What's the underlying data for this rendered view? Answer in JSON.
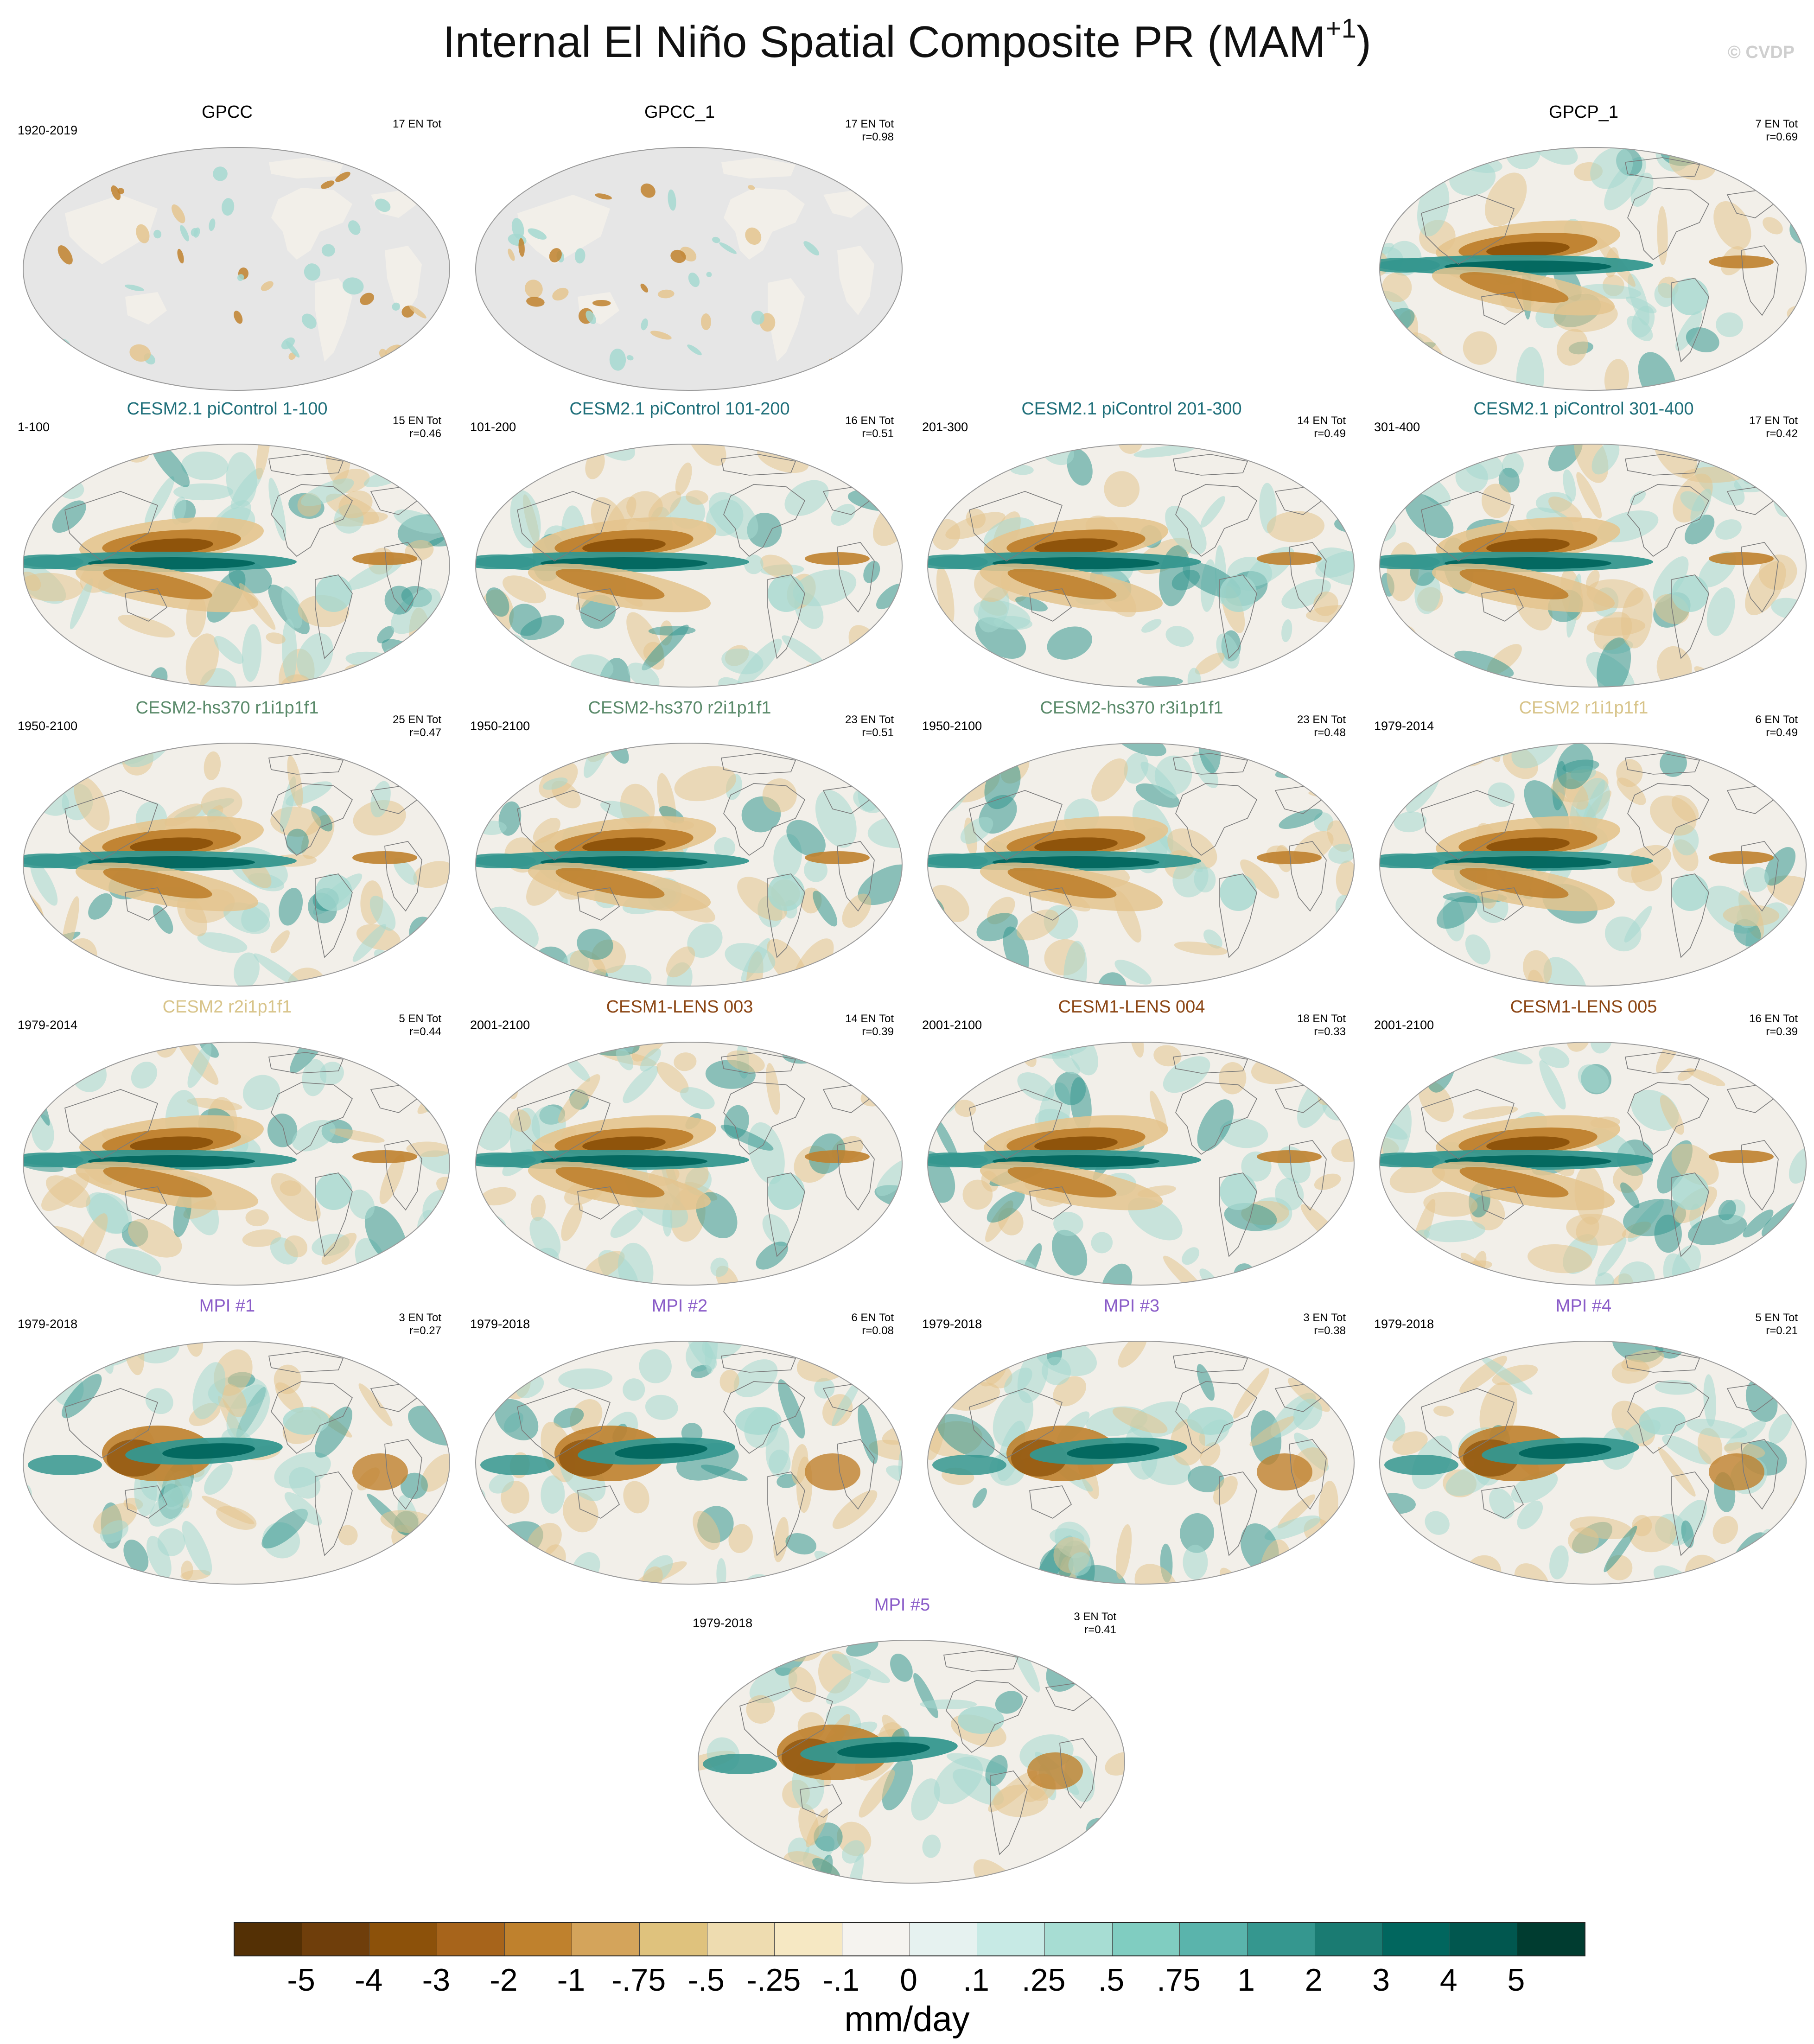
{
  "title_main": "Internal El Niño Spatial Composite PR (MAM",
  "title_sup": "+1",
  "title_end": ")",
  "copyright": "© CVDP",
  "colors": {
    "land_gray": "#e6e6e6",
    "ocean_base": "#f2efe9",
    "dry_dark": "#8c510a",
    "dry_mid": "#bf812d",
    "dry_light": "#e4c48e",
    "wet_dark": "#01665e",
    "wet_mid": "#35978f",
    "wet_light": "#a5d8d0",
    "title_cesm21": "#1f6f7a",
    "title_hs370": "#5a8a6a",
    "title_cesm2": "#d8c48a",
    "title_lens": "#8b4513",
    "title_mpi": "#8a5cc8",
    "title_obs": "#000000"
  },
  "panels": [
    {
      "id": "gpcc",
      "title": "GPCC",
      "years": "1920-2019",
      "en": "17 EN Tot",
      "r": "",
      "pattern": "land"
    },
    {
      "id": "gpcc1",
      "title": "GPCC_1",
      "years": "",
      "en": "17 EN Tot",
      "r": "r=0.98",
      "pattern": "land"
    },
    {
      "id": "gpcp1",
      "title": "GPCP_1",
      "years": "",
      "en": "7 EN Tot",
      "r": "r=0.69",
      "pattern": "obs"
    },
    {
      "id": "pic1",
      "title": "CESM2.1 piControl 1-100",
      "years": "1-100",
      "en": "15 EN Tot",
      "r": "r=0.46",
      "pattern": "model"
    },
    {
      "id": "pic2",
      "title": "CESM2.1 piControl 101-200",
      "years": "101-200",
      "en": "16 EN Tot",
      "r": "r=0.51",
      "pattern": "model"
    },
    {
      "id": "pic3",
      "title": "CESM2.1 piControl 201-300",
      "years": "201-300",
      "en": "14 EN Tot",
      "r": "r=0.49",
      "pattern": "model"
    },
    {
      "id": "pic4",
      "title": "CESM2.1 piControl 301-400",
      "years": "301-400",
      "en": "17 EN Tot",
      "r": "r=0.42",
      "pattern": "model"
    },
    {
      "id": "hs1",
      "title": "CESM2-hs370 r1i1p1f1",
      "years": "1950-2100",
      "en": "25 EN Tot",
      "r": "r=0.47",
      "pattern": "model"
    },
    {
      "id": "hs2",
      "title": "CESM2-hs370 r2i1p1f1",
      "years": "1950-2100",
      "en": "23 EN Tot",
      "r": "r=0.51",
      "pattern": "model"
    },
    {
      "id": "hs3",
      "title": "CESM2-hs370 r3i1p1f1",
      "years": "1950-2100",
      "en": "23 EN Tot",
      "r": "r=0.48",
      "pattern": "model"
    },
    {
      "id": "c2r1",
      "title": "CESM2 r1i1p1f1",
      "years": "1979-2014",
      "en": "6 EN Tot",
      "r": "r=0.49",
      "pattern": "model"
    },
    {
      "id": "c2r2",
      "title": "CESM2 r2i1p1f1",
      "years": "1979-2014",
      "en": "5 EN Tot",
      "r": "r=0.44",
      "pattern": "model"
    },
    {
      "id": "l003",
      "title": "CESM1-LENS 003",
      "years": "2001-2100",
      "en": "14 EN Tot",
      "r": "r=0.39",
      "pattern": "model"
    },
    {
      "id": "l004",
      "title": "CESM1-LENS 004",
      "years": "2001-2100",
      "en": "18 EN Tot",
      "r": "r=0.33",
      "pattern": "model"
    },
    {
      "id": "l005",
      "title": "CESM1-LENS 005",
      "years": "2001-2100",
      "en": "16 EN Tot",
      "r": "r=0.39",
      "pattern": "model"
    },
    {
      "id": "mpi1",
      "title": "MPI #1",
      "years": "1979-2018",
      "en": "3 EN Tot",
      "r": "r=0.27",
      "pattern": "mpi"
    },
    {
      "id": "mpi2",
      "title": "MPI #2",
      "years": "1979-2018",
      "en": "6 EN Tot",
      "r": "r=0.08",
      "pattern": "mpi"
    },
    {
      "id": "mpi3",
      "title": "MPI #3",
      "years": "1979-2018",
      "en": "3 EN Tot",
      "r": "r=0.38",
      "pattern": "mpi"
    },
    {
      "id": "mpi4",
      "title": "MPI #4",
      "years": "1979-2018",
      "en": "5 EN Tot",
      "r": "r=0.21",
      "pattern": "mpi"
    },
    {
      "id": "mpi5",
      "title": "MPI #5",
      "years": "1979-2018",
      "en": "3 EN Tot",
      "r": "r=0.41",
      "pattern": "mpi"
    }
  ],
  "colorbar": {
    "colors": [
      "#543005",
      "#6f3e0b",
      "#8c510a",
      "#a7641b",
      "#bf812d",
      "#d4a45b",
      "#dfc27d",
      "#eedcb0",
      "#f6e8c3",
      "#f5f3ef",
      "#e6f2f0",
      "#c7eae5",
      "#a7ddd3",
      "#80cdc1",
      "#5ab4ac",
      "#35978f",
      "#1a7b72",
      "#01665e",
      "#01574f",
      "#003c30"
    ],
    "labels": [
      "-5",
      "-4",
      "-3",
      "-2",
      "-1",
      "-.75",
      "-.5",
      "-.25",
      "-.1",
      "0",
      ".1",
      ".25",
      ".5",
      ".75",
      "1",
      "2",
      "3",
      "4",
      "5"
    ],
    "units": "mm/day"
  }
}
